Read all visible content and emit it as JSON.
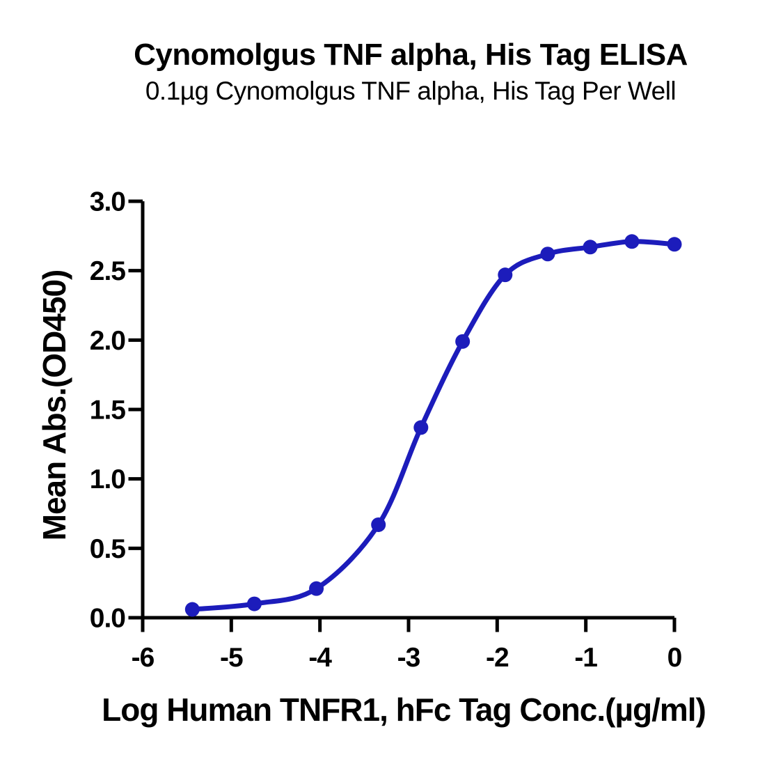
{
  "page": {
    "background": "#ffffff",
    "text_color": "#000000"
  },
  "chart_data": {
    "type": "scatter",
    "title": "Cynomolgus TNF alpha, His Tag ELISA",
    "subtitle": "0.1µg Cynomolgus TNF alpha, His Tag Per Well",
    "xlabel": "Log Human TNFR1, hFc Tag Conc.(µg/ml)",
    "ylabel": "Mean Abs.(OD450)",
    "xlim": [
      -6,
      0
    ],
    "ylim": [
      0,
      3
    ],
    "xticks": [
      "-6",
      "-5",
      "-4",
      "-3",
      "-2",
      "-1",
      "0"
    ],
    "xtick_values": [
      -6,
      -5,
      -4,
      -3,
      -2,
      -1,
      0
    ],
    "yticks": [
      "0.0",
      "0.5",
      "1.0",
      "1.5",
      "2.0",
      "2.5",
      "3.0"
    ],
    "ytick_values": [
      0,
      0.5,
      1,
      1.5,
      2,
      2.5,
      3
    ],
    "grid": false,
    "legend_position": "none",
    "curve_color": "#1C1CBB",
    "axis_color": "#000000",
    "series": [
      {
        "x": [
          -5.44,
          -4.74,
          -4.04,
          -3.34,
          -2.86,
          -2.39,
          -1.91,
          -1.43,
          -0.95,
          -0.48,
          0
        ],
        "y": [
          0.06,
          0.1,
          0.21,
          0.67,
          1.37,
          1.99,
          2.47,
          2.62,
          2.67,
          2.71,
          2.69
        ]
      }
    ]
  }
}
